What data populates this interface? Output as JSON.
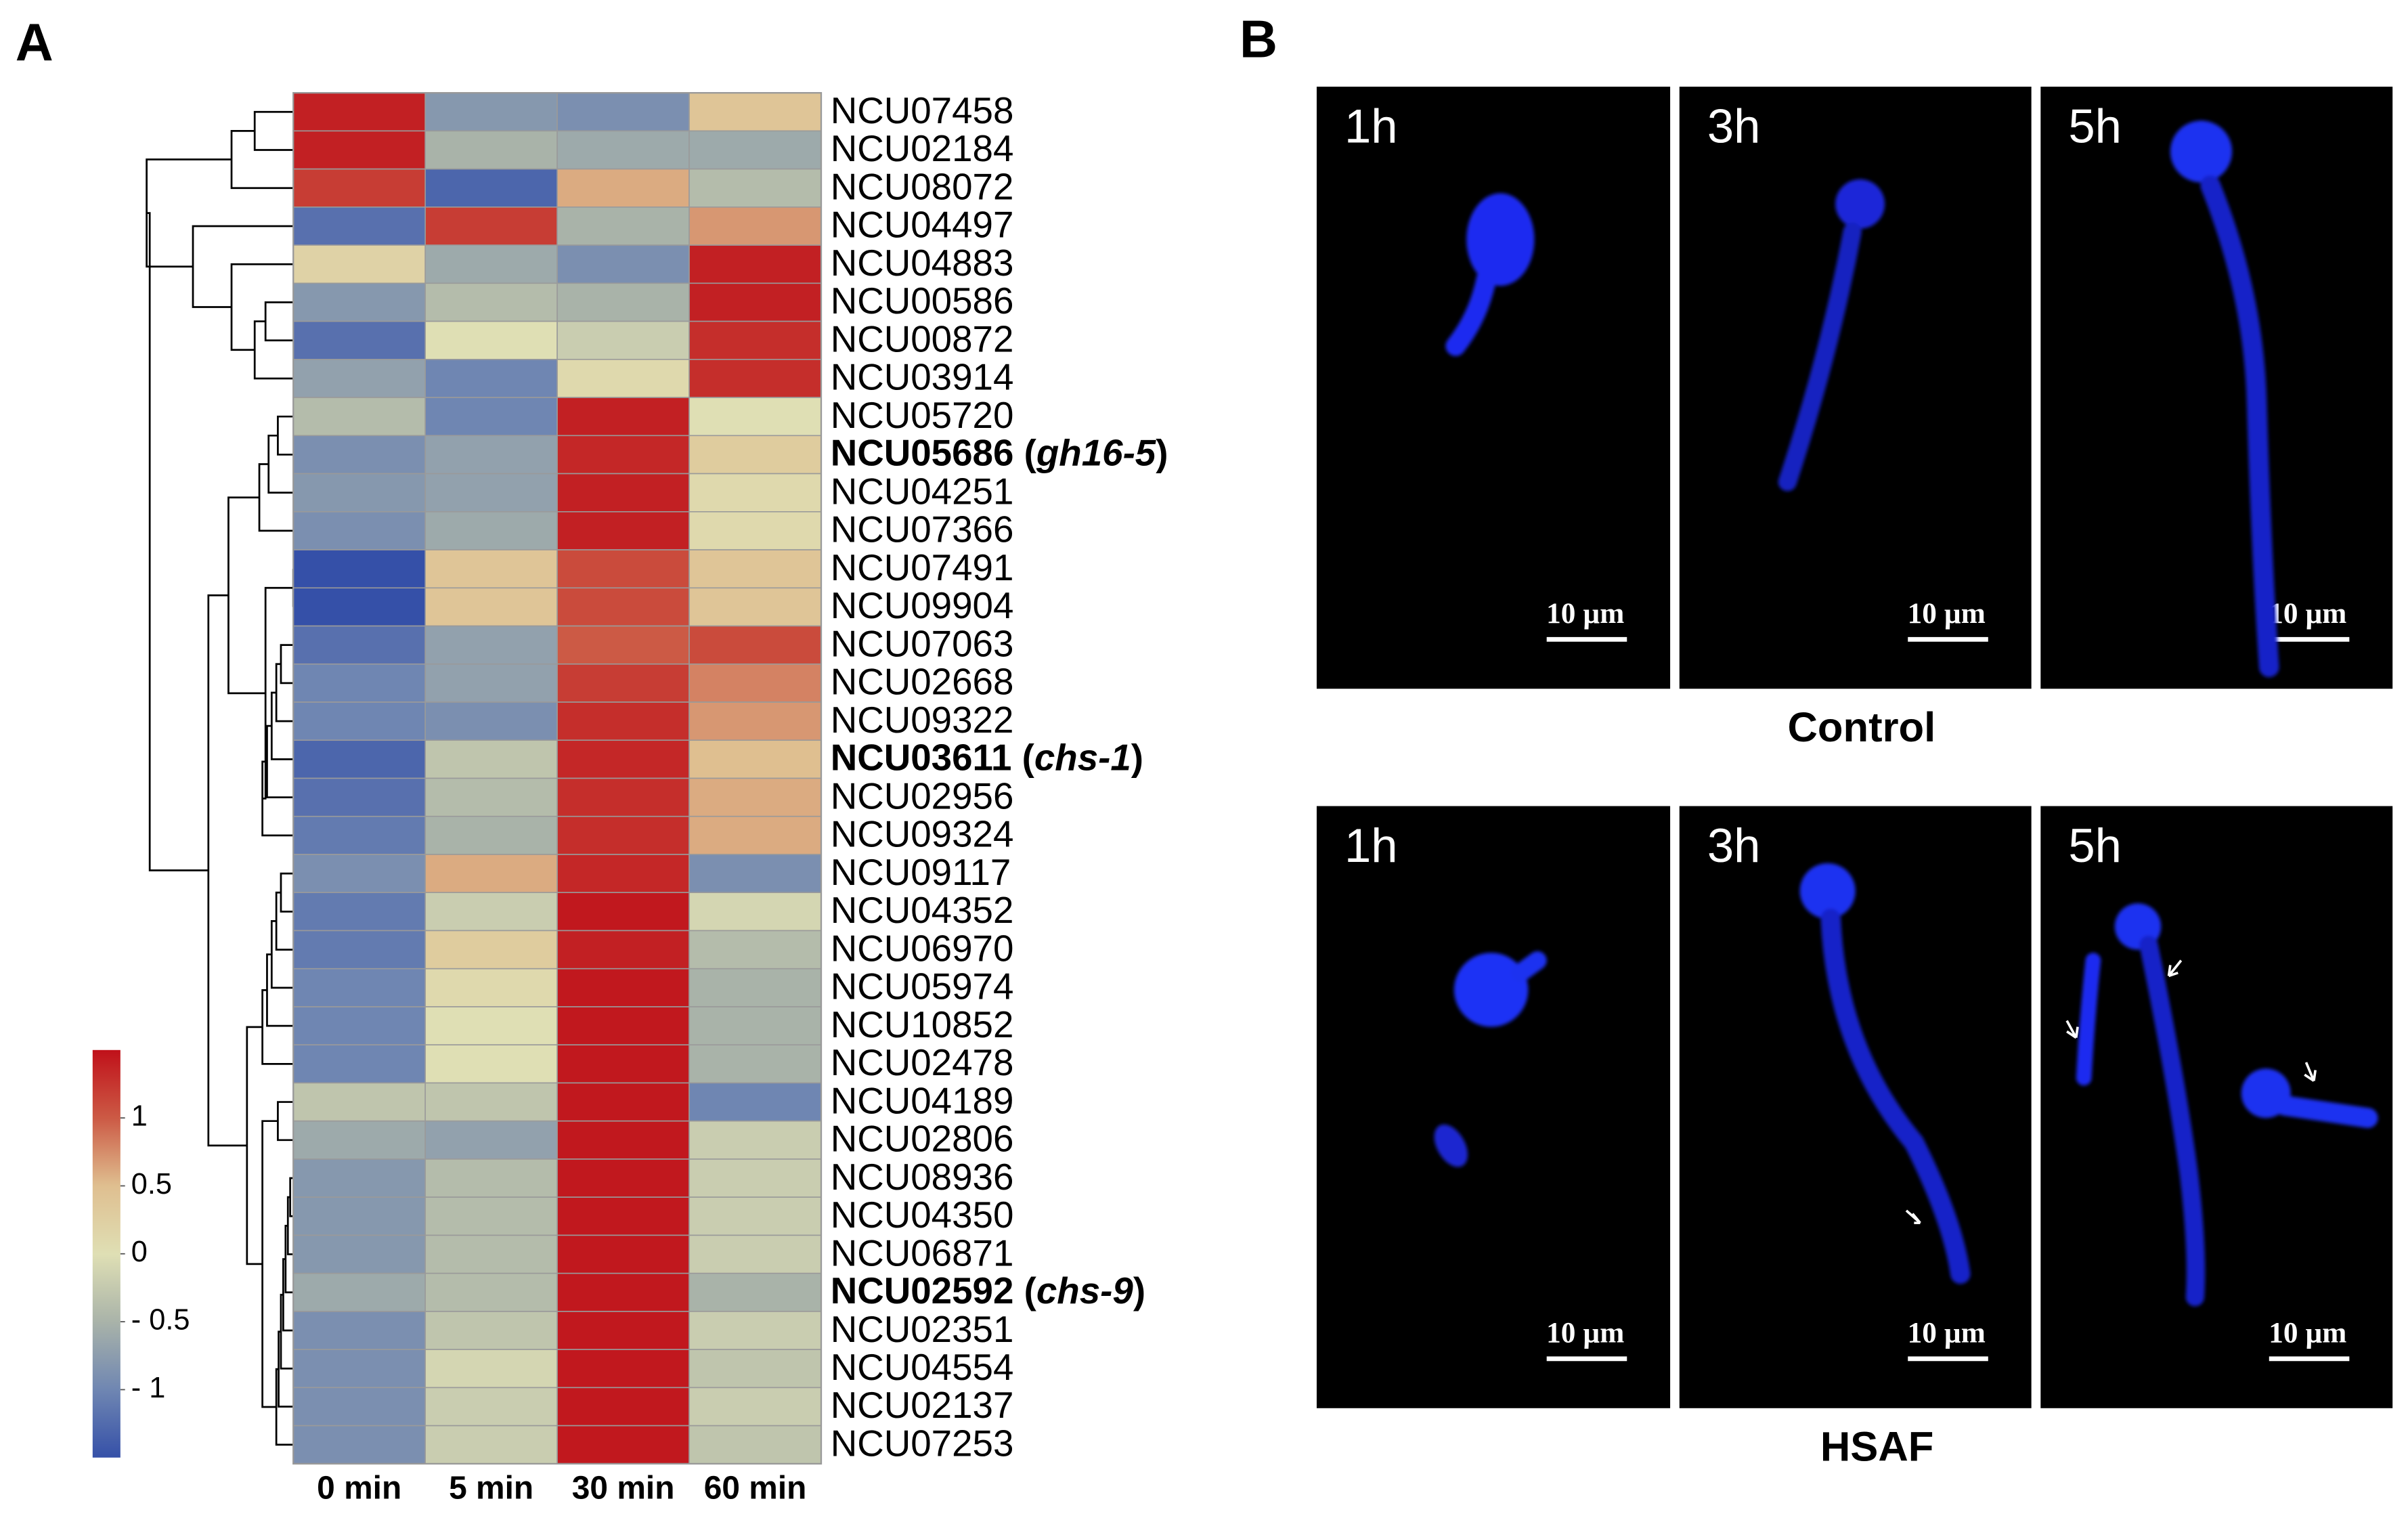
{
  "panel_labels": {
    "a": "A",
    "b": "B"
  },
  "chart_data": {
    "type": "heatmap",
    "x_categories": [
      "0 min",
      "5 min",
      "30 min",
      "60 min"
    ],
    "y_categories": [
      "NCU07458",
      "NCU02184",
      "NCU08072",
      "NCU04497",
      "NCU04883",
      "NCU00586",
      "NCU00872",
      "NCU03914",
      "NCU05720",
      "NCU05686 (gh16-5)",
      "NCU04251",
      "NCU07366",
      "NCU07491",
      "NCU09904",
      "NCU07063",
      "NCU02668",
      "NCU09322",
      "NCU03611 (chs-1)",
      "NCU02956",
      "NCU09324",
      "NCU09117",
      "NCU04352",
      "NCU06970",
      "NCU05974",
      "NCU10852",
      "NCU02478",
      "NCU04189",
      "NCU02806",
      "NCU08936",
      "NCU04350",
      "NCU06871",
      "NCU02592 (chs-9)",
      "NCU02351",
      "NCU04554",
      "NCU02137",
      "NCU07253"
    ],
    "values": [
      [
        1.4,
        -0.8,
        -0.9,
        0.4
      ],
      [
        1.4,
        -0.5,
        -0.6,
        -0.6
      ],
      [
        1.2,
        -1.3,
        0.6,
        -0.4
      ],
      [
        -1.2,
        1.2,
        -0.5,
        0.7
      ],
      [
        0.2,
        -0.6,
        -0.9,
        1.4
      ],
      [
        -0.8,
        -0.4,
        -0.5,
        1.4
      ],
      [
        -1.2,
        0.0,
        -0.2,
        1.3
      ],
      [
        -0.7,
        -1.0,
        0.1,
        1.3
      ],
      [
        -0.4,
        -1.0,
        1.4,
        0.0
      ],
      [
        -0.9,
        -0.7,
        1.35,
        0.3
      ],
      [
        -0.8,
        -0.7,
        1.4,
        0.1
      ],
      [
        -0.9,
        -0.6,
        1.4,
        0.1
      ],
      [
        -1.5,
        0.4,
        1.1,
        0.4
      ],
      [
        -1.5,
        0.4,
        1.1,
        0.4
      ],
      [
        -1.2,
        -0.7,
        1.0,
        1.1
      ],
      [
        -1.0,
        -0.7,
        1.2,
        0.8
      ],
      [
        -1.0,
        -0.9,
        1.3,
        0.7
      ],
      [
        -1.3,
        -0.3,
        1.35,
        0.5
      ],
      [
        -1.2,
        -0.4,
        1.3,
        0.6
      ],
      [
        -1.1,
        -0.5,
        1.3,
        0.6
      ],
      [
        -0.9,
        0.6,
        1.35,
        -0.9
      ],
      [
        -1.1,
        -0.2,
        1.45,
        -0.1
      ],
      [
        -1.1,
        0.3,
        1.4,
        -0.4
      ],
      [
        -1.0,
        0.1,
        1.45,
        -0.5
      ],
      [
        -1.0,
        0.0,
        1.45,
        -0.5
      ],
      [
        -1.0,
        0.0,
        1.45,
        -0.5
      ],
      [
        -0.3,
        -0.3,
        1.45,
        -1.0
      ],
      [
        -0.6,
        -0.7,
        1.45,
        -0.2
      ],
      [
        -0.8,
        -0.4,
        1.45,
        -0.2
      ],
      [
        -0.8,
        -0.4,
        1.45,
        -0.2
      ],
      [
        -0.8,
        -0.4,
        1.45,
        -0.2
      ],
      [
        -0.6,
        -0.4,
        1.45,
        -0.5
      ],
      [
        -0.9,
        -0.3,
        1.45,
        -0.2
      ],
      [
        -0.9,
        -0.1,
        1.45,
        -0.3
      ],
      [
        -0.9,
        -0.2,
        1.45,
        -0.2
      ],
      [
        -0.9,
        -0.2,
        1.45,
        -0.3
      ]
    ],
    "clim": [
      -1.5,
      1.5
    ],
    "cticks": [
      1,
      0.5,
      0,
      {
        "value": -0.5,
        "label": "- 0.5"
      },
      {
        "value": -1,
        "label": "- 1"
      }
    ],
    "colormap": [
      "#3550a8",
      "#6f86b2",
      "#a9b3a9",
      "#dfdfb4",
      "#dfbf90",
      "#cc5a45",
      "#c0111a"
    ]
  },
  "micrographs": {
    "conditions": [
      {
        "name": "Control",
        "times": [
          "1h",
          "3h",
          "5h"
        ]
      },
      {
        "name": "HSAF",
        "times": [
          "1h",
          "3h",
          "5h"
        ]
      }
    ],
    "scale_bar": "10 µm"
  }
}
